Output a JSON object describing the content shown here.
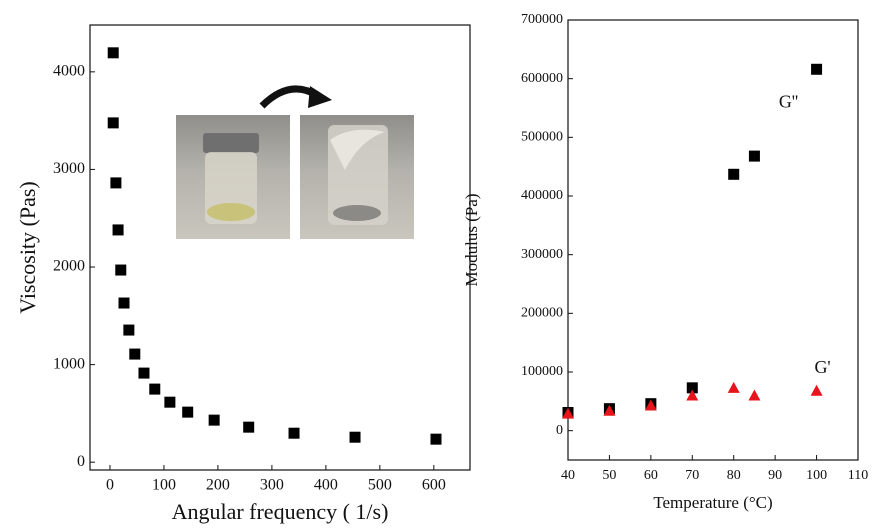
{
  "chart_data": [
    {
      "type": "scatter",
      "xlabel": "Angular frequency ( 1/s)",
      "ylabel": "Viscosity (Pas)",
      "x": [
        6,
        6,
        11,
        15,
        20,
        26,
        35,
        46,
        63,
        83,
        111,
        144,
        193,
        257,
        341,
        454,
        604
      ],
      "values": [
        4195,
        3477,
        2862,
        2380,
        1969,
        1631,
        1354,
        1108,
        913,
        749,
        615,
        513,
        431,
        359,
        297,
        256,
        236
      ],
      "color": "#000000",
      "marker": "square",
      "xlim": [
        -37,
        667
      ],
      "xticks": [
        0,
        100,
        200,
        300,
        400,
        500,
        600
      ],
      "ylim": [
        -80,
        4480
      ],
      "yticks": [
        0,
        1000,
        2000,
        3000,
        4000
      ]
    },
    {
      "type": "scatter",
      "xlabel": "Temperature (°C)",
      "ylabel": "Modulus (Pa)",
      "x": [
        40,
        50,
        60,
        70,
        80,
        85,
        100
      ],
      "series": [
        {
          "name": "G''",
          "color": "#000000",
          "marker": "square",
          "values": [
            31000,
            37500,
            46000,
            73000,
            437000,
            468000,
            616000
          ]
        },
        {
          "name": "G'",
          "color": "#e8141b",
          "marker": "triangle",
          "values": [
            29000,
            34000,
            43000,
            60000,
            73000,
            60000,
            68000
          ]
        }
      ],
      "xlim": [
        40,
        110
      ],
      "xticks": [
        40,
        50,
        60,
        70,
        80,
        90,
        100,
        110
      ],
      "ylim": [
        -50000,
        700000
      ],
      "yticks": [
        0,
        100000,
        200000,
        300000,
        400000,
        500000,
        600000,
        700000
      ]
    }
  ]
}
